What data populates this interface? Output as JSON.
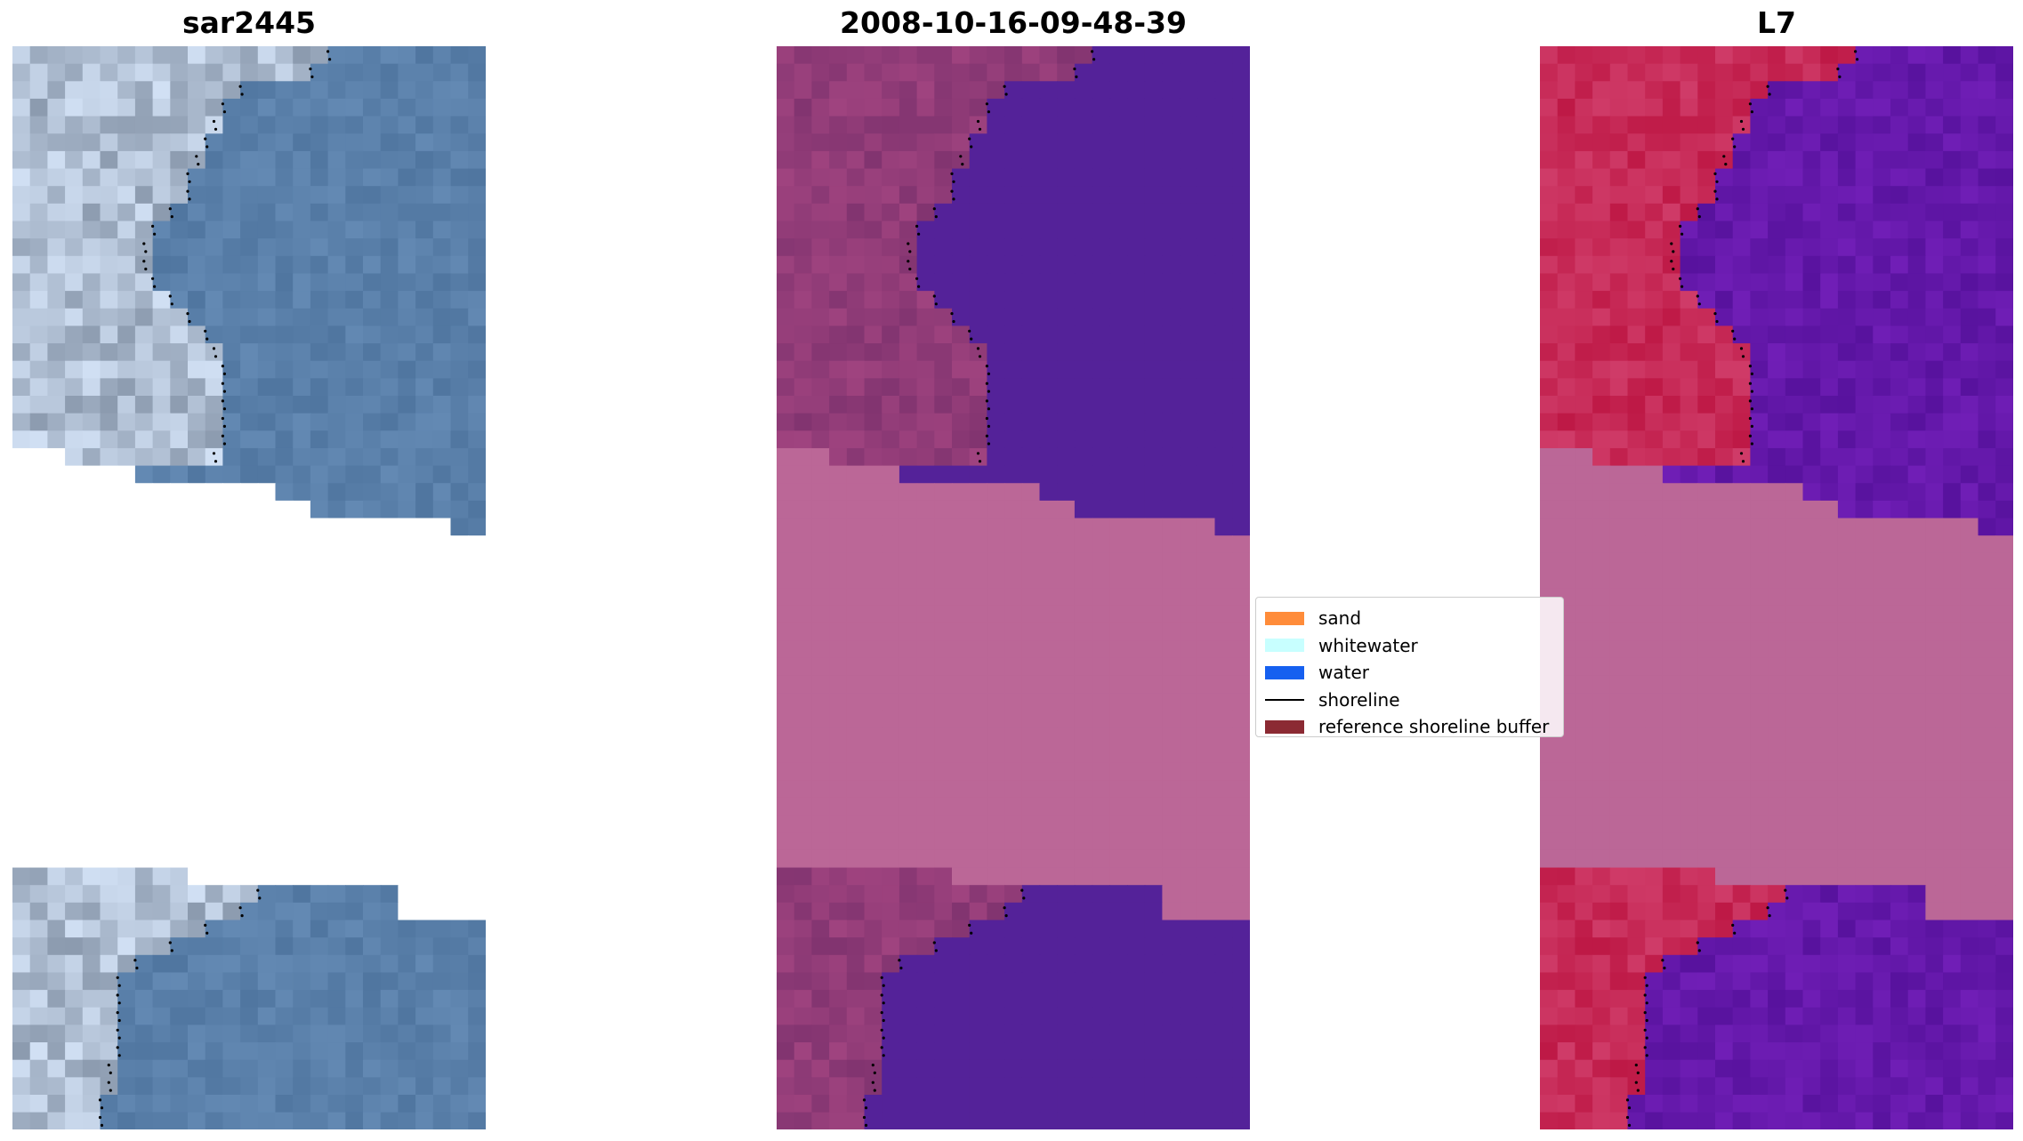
{
  "panels": [
    {
      "title": "sar2445",
      "style": "rgb"
    },
    {
      "title": "2008-10-16-09-48-39",
      "style": "classified"
    },
    {
      "title": "L7",
      "style": "falsecolor"
    }
  ],
  "legend": {
    "items": [
      {
        "label": "sand",
        "color": "#ff8c3a",
        "kind": "patch"
      },
      {
        "label": "whitewater",
        "color": "#c8ffff",
        "kind": "patch"
      },
      {
        "label": "water",
        "color": "#1660f0",
        "kind": "patch"
      },
      {
        "label": "shoreline",
        "color": "#000000",
        "kind": "line"
      },
      {
        "label": "reference shoreline buffer",
        "color": "#8b2a33",
        "kind": "patch"
      }
    ]
  },
  "colors": {
    "nodata": "#bb6797",
    "water_classified": "#542299",
    "land_classified": "#8e3a78",
    "land_falsecolor": "#c8245a",
    "water_falsecolor": "#5e14a2",
    "water_rgb": "#5a7aa4",
    "land_rgb": "#8ea4bc"
  }
}
